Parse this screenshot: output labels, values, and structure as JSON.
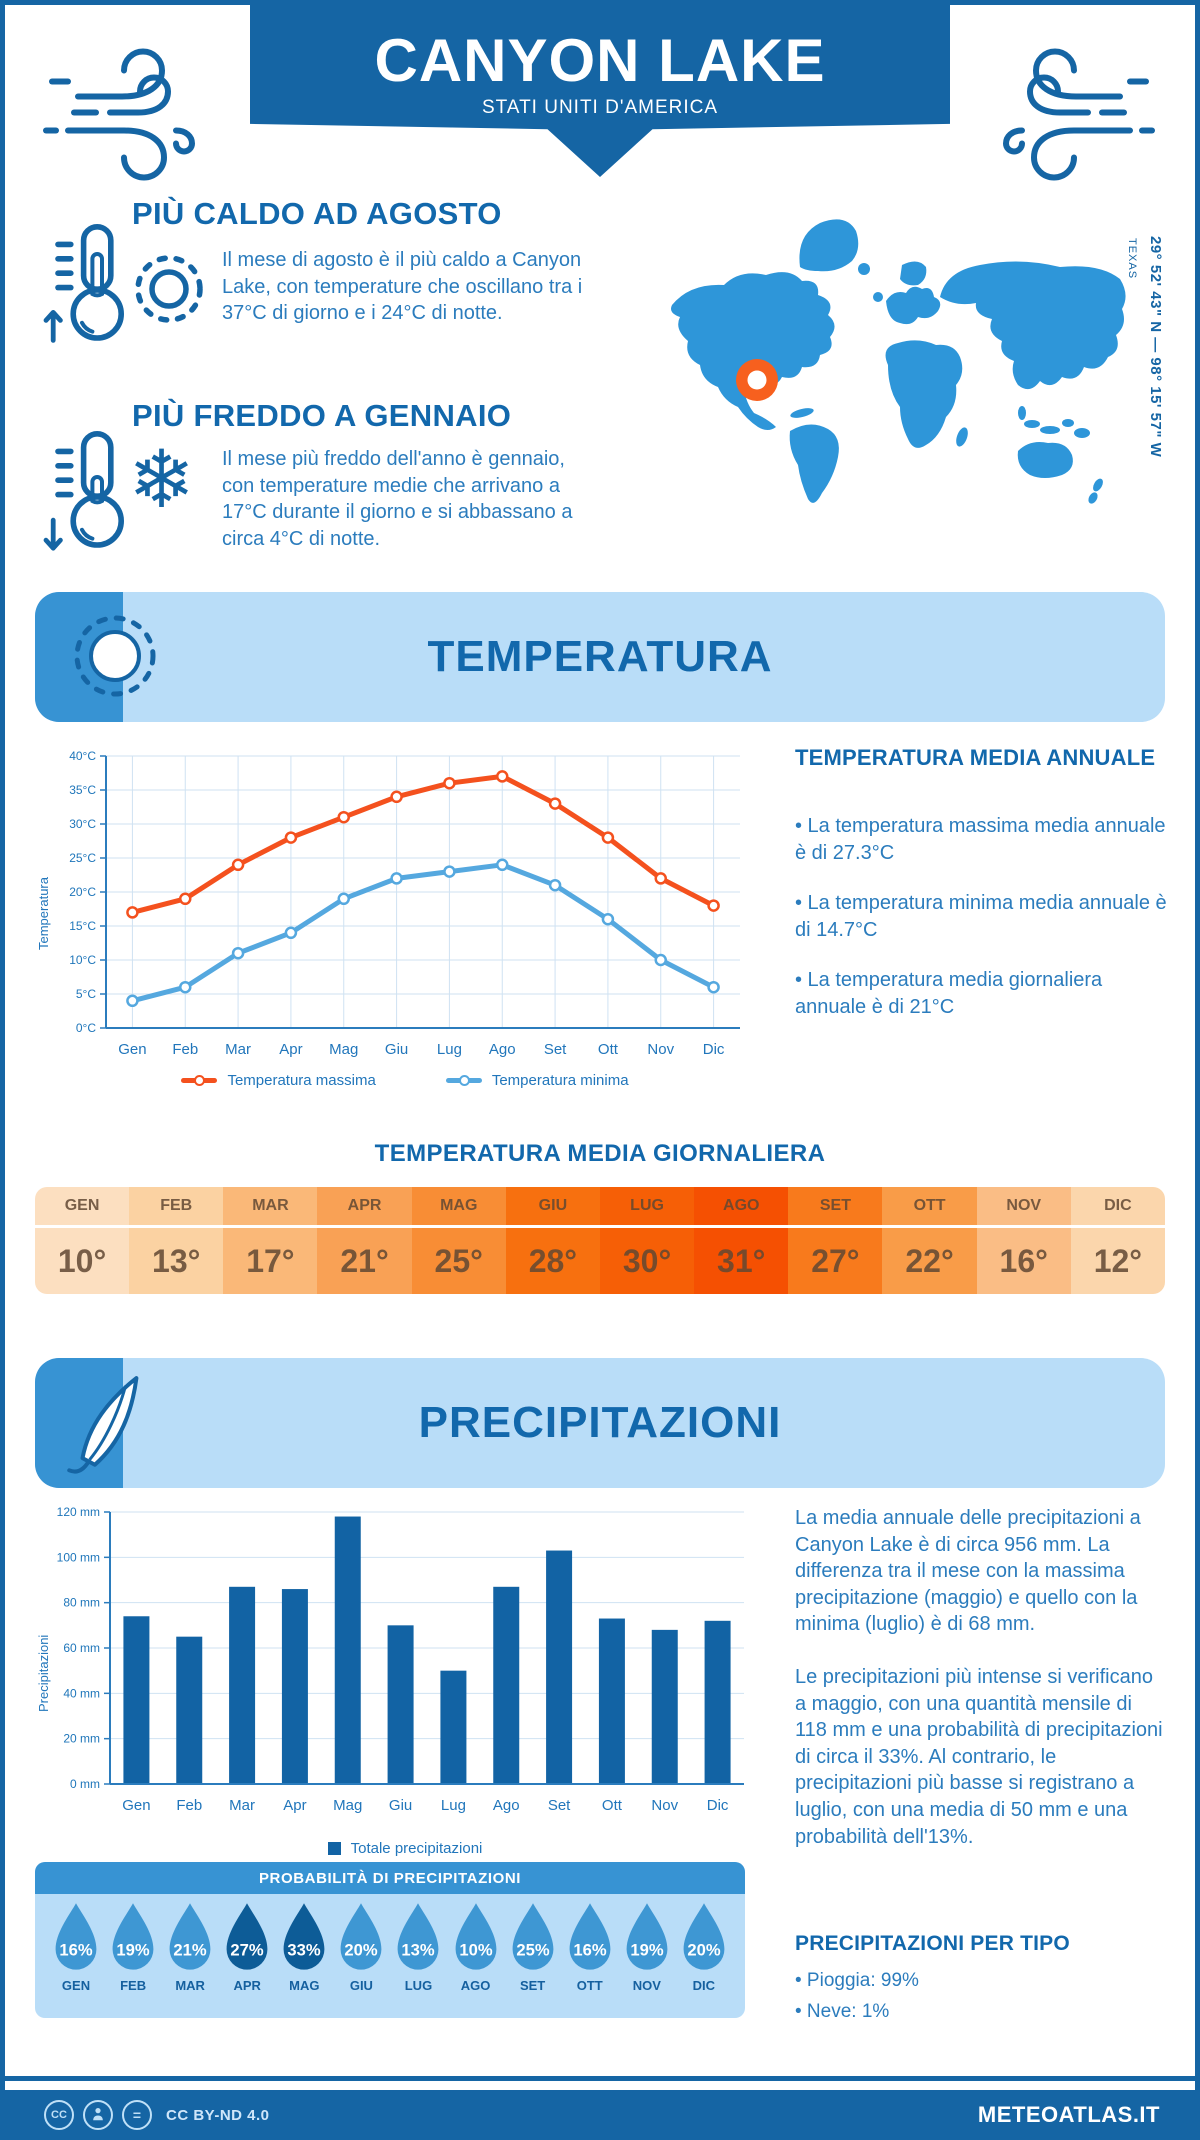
{
  "icons": {
    "snowflake": "❄"
  },
  "header": {
    "title": "CANYON LAKE",
    "subtitle": "STATI UNITI D'AMERICA"
  },
  "highlights": {
    "hot": {
      "title": "PIÙ CALDO AD AGOSTO",
      "text": "Il mese di agosto è il più caldo a Canyon Lake, con temperature che oscillano tra i 37°C di giorno e i 24°C di notte."
    },
    "cold": {
      "title": "PIÙ FREDDO A GENNAIO",
      "text": "Il mese più freddo dell'anno è gennaio, con temperature medie che arrivano a 17°C durante il giorno e si abbassano a circa 4°C di notte."
    }
  },
  "map": {
    "region": "TEXAS",
    "coordinates": "29° 52' 43\" N — 98° 15' 57\" W"
  },
  "temperature": {
    "banner": "TEMPERATURA",
    "annual_title": "TEMPERATURA MEDIA ANNUALE",
    "annual_bullets": [
      "• La temperatura massima media annuale è di 27.3°C",
      "• La temperatura minima media annuale è di 14.7°C",
      "• La temperatura media giornaliera annuale è di 21°C"
    ],
    "daily_title": "TEMPERATURA MEDIA GIORNALIERA",
    "daily_table": [
      {
        "m": "GEN",
        "v": "10°",
        "c": "#fcdfc0"
      },
      {
        "m": "FEB",
        "v": "13°",
        "c": "#fbd2a2"
      },
      {
        "m": "MAR",
        "v": "17°",
        "c": "#fab878"
      },
      {
        "m": "APR",
        "v": "21°",
        "c": "#f9a155"
      },
      {
        "m": "MAG",
        "v": "25°",
        "c": "#f88d35"
      },
      {
        "m": "GIU",
        "v": "28°",
        "c": "#f7700f"
      },
      {
        "m": "LUG",
        "v": "30°",
        "c": "#f65f06"
      },
      {
        "m": "AGO",
        "v": "31°",
        "c": "#f55002"
      },
      {
        "m": "SET",
        "v": "27°",
        "c": "#f87a1c"
      },
      {
        "m": "OTT",
        "v": "22°",
        "c": "#f99c48"
      },
      {
        "m": "NOV",
        "v": "16°",
        "c": "#fabd85"
      },
      {
        "m": "DIC",
        "v": "12°",
        "c": "#fbd6ac"
      }
    ]
  },
  "precipitation": {
    "banner": "PRECIPITAZIONI",
    "paragraphs": [
      "La media annuale delle precipitazioni a Canyon Lake è di circa 956 mm. La differenza tra il mese con la massima precipitazione (maggio) e quello con la minima (luglio) è di 68 mm.",
      "Le precipitazioni più intense si verificano a maggio, con una quantità mensile di 118 mm e una probabilità di precipitazioni di circa il 33%. Al contrario, le precipitazioni più basse si registrano a luglio, con una media di 50 mm e una probabilità dell'13%."
    ],
    "probability_title": "PROBABILITÀ DI PRECIPITAZIONI",
    "drops": [
      {
        "m": "GEN",
        "v": "16%",
        "c": "#3e97d3"
      },
      {
        "m": "FEB",
        "v": "19%",
        "c": "#3e97d3"
      },
      {
        "m": "MAR",
        "v": "21%",
        "c": "#3e97d3"
      },
      {
        "m": "APR",
        "v": "27%",
        "c": "#0d5c97"
      },
      {
        "m": "MAG",
        "v": "33%",
        "c": "#0d5c97"
      },
      {
        "m": "GIU",
        "v": "20%",
        "c": "#3e97d3"
      },
      {
        "m": "LUG",
        "v": "13%",
        "c": "#3e97d3"
      },
      {
        "m": "AGO",
        "v": "10%",
        "c": "#3e97d3"
      },
      {
        "m": "SET",
        "v": "25%",
        "c": "#3e97d3"
      },
      {
        "m": "OTT",
        "v": "16%",
        "c": "#3e97d3"
      },
      {
        "m": "NOV",
        "v": "19%",
        "c": "#3e97d3"
      },
      {
        "m": "DIC",
        "v": "20%",
        "c": "#3e97d3"
      }
    ],
    "types_title": "PRECIPITAZIONI PER TIPO",
    "types_bullets": [
      "• Pioggia: 99%",
      "• Neve: 1%"
    ]
  },
  "chart_data": [
    {
      "type": "line",
      "x": [
        "Gen",
        "Feb",
        "Mar",
        "Apr",
        "Mag",
        "Giu",
        "Lug",
        "Ago",
        "Set",
        "Ott",
        "Nov",
        "Dic"
      ],
      "ylabel": "Temperatura",
      "ylim": [
        0,
        40
      ],
      "ytick_step": 5,
      "ytick_suffix": "°C",
      "grid": true,
      "legend_position": "bottom",
      "series": [
        {
          "name": "Temperatura massima",
          "color": "#f4511e",
          "values": [
            17,
            19,
            24,
            28,
            31,
            34,
            36,
            37,
            33,
            28,
            22,
            18
          ]
        },
        {
          "name": "Temperatura minima",
          "color": "#55a8df",
          "values": [
            4,
            6,
            11,
            14,
            19,
            22,
            23,
            24,
            21,
            16,
            10,
            6
          ]
        }
      ]
    },
    {
      "type": "bar",
      "x": [
        "Gen",
        "Feb",
        "Mar",
        "Apr",
        "Mag",
        "Giu",
        "Lug",
        "Ago",
        "Set",
        "Ott",
        "Nov",
        "Dic"
      ],
      "ylabel": "Precipitazioni",
      "ylim": [
        0,
        120
      ],
      "ytick_step": 20,
      "ytick_suffix": " mm",
      "grid": true,
      "legend_position": "bottom",
      "series": [
        {
          "name": "Totale precipitazioni",
          "color": "#1263a4",
          "values": [
            74,
            65,
            87,
            86,
            118,
            70,
            50,
            87,
            103,
            73,
            68,
            72
          ]
        }
      ]
    }
  ],
  "colors": {
    "primary": "#1565a4",
    "heading": "#1268ac",
    "body_text": "#2b7cbd",
    "panel": "#b9ddf8",
    "cap": "#3793d3",
    "map_land": "#2e96d9",
    "marker": "#f7601e"
  },
  "footer": {
    "license": "CC BY-ND 4.0",
    "brand": "METEOATLAS.IT"
  }
}
